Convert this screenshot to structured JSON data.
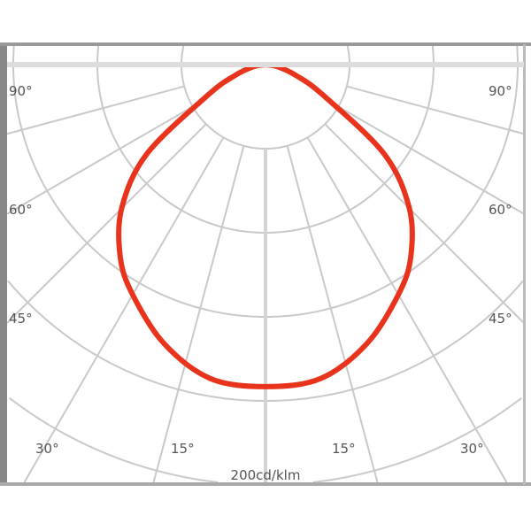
{
  "chart_data": {
    "type": "polar-line",
    "scale_label": "200cd/klm",
    "angle_labels_left": [
      "90°",
      "60°",
      "45°",
      "30°",
      "15°"
    ],
    "angle_labels_right": [
      "90°",
      "60°",
      "45°",
      "30°",
      "15°"
    ],
    "series": [
      {
        "color": "#e8341c",
        "angles_deg": [
          0,
          10,
          20,
          30,
          37,
          45,
          53,
          62,
          70,
          80,
          90
        ],
        "intensity": [
          383,
          379,
          353,
          316,
          287,
          242,
          177,
          78,
          40,
          15,
          0
        ]
      }
    ],
    "grid": true
  }
}
